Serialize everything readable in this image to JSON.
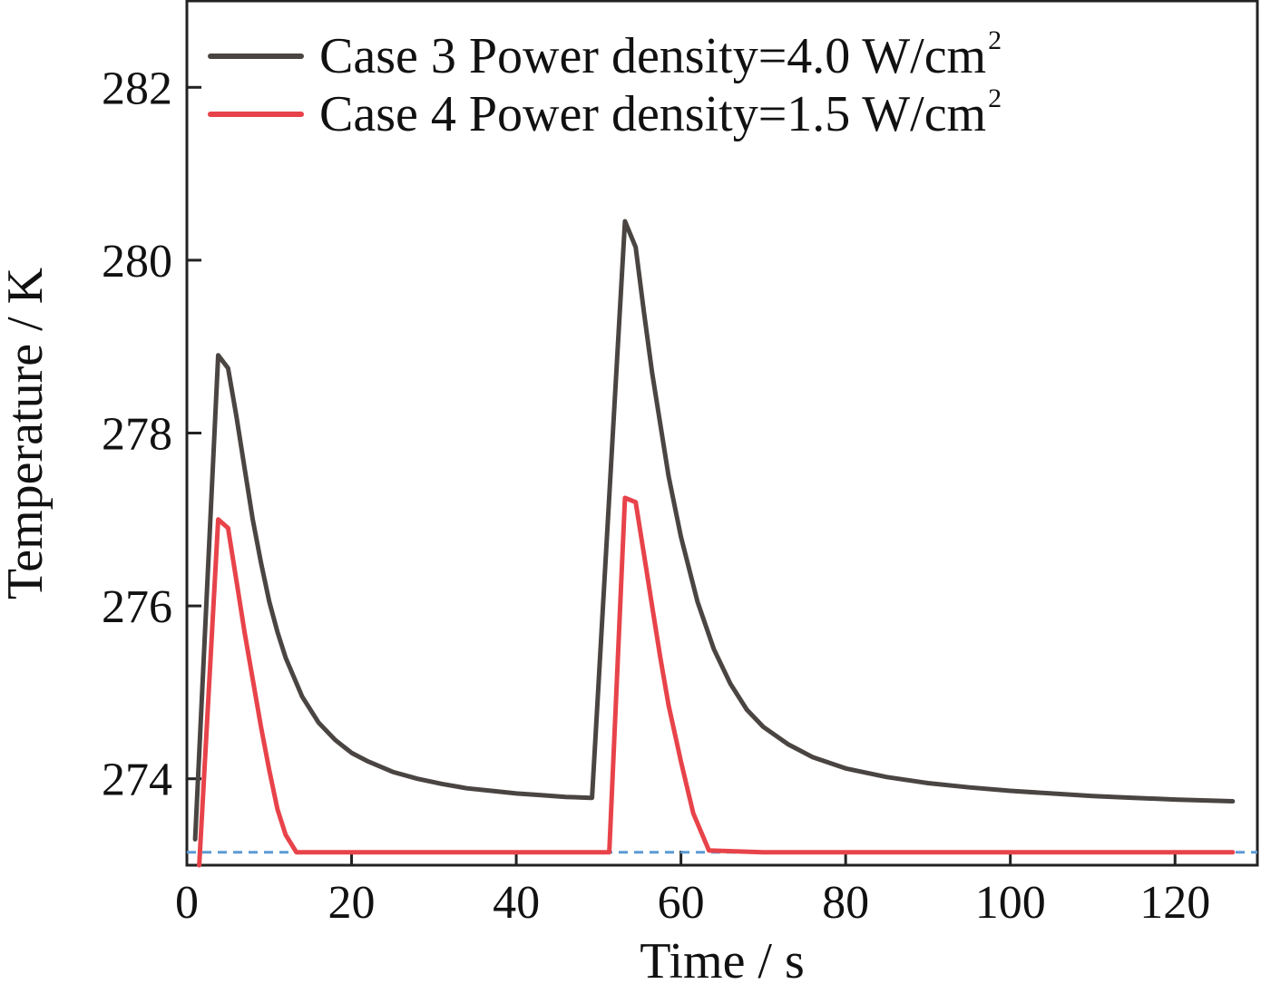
{
  "chart_data": {
    "type": "line",
    "xlabel": "Time / s",
    "ylabel": "Temperature / K",
    "xlim": [
      0,
      130
    ],
    "ylim": [
      273.0,
      283.0
    ],
    "xticks": [
      0,
      20,
      40,
      60,
      80,
      100,
      120
    ],
    "yticks": [
      274,
      276,
      278,
      280,
      282
    ],
    "legend_position": "top-left",
    "series": [
      {
        "name": "Case 3 Power density=4.0 W/cm",
        "name_sup": "2",
        "color": "#4a4542",
        "x": [
          1,
          3.8,
          5,
          6,
          7,
          8,
          9,
          10,
          11,
          12,
          14,
          16,
          18,
          20,
          22,
          25,
          28,
          31,
          34,
          37,
          40,
          43,
          46,
          49,
          49.2,
          53.2,
          54.5,
          55.5,
          56.5,
          57.5,
          58.5,
          60,
          62,
          64,
          66,
          68,
          70,
          73,
          76,
          80,
          85,
          90,
          95,
          100,
          105,
          110,
          115,
          120,
          127
        ],
        "y": [
          273.3,
          278.9,
          278.75,
          278.2,
          277.6,
          277.0,
          276.5,
          276.05,
          275.7,
          275.4,
          274.95,
          274.65,
          274.45,
          274.3,
          274.2,
          274.08,
          274.0,
          273.94,
          273.89,
          273.86,
          273.83,
          273.81,
          273.79,
          273.78,
          273.78,
          280.45,
          280.15,
          279.4,
          278.7,
          278.1,
          277.5,
          276.8,
          276.05,
          275.5,
          275.1,
          274.8,
          274.6,
          274.4,
          274.25,
          274.12,
          274.02,
          273.95,
          273.9,
          273.86,
          273.83,
          273.8,
          273.78,
          273.76,
          273.74
        ]
      },
      {
        "name": "Case 4 Power density=1.5 W/cm",
        "name_sup": "2",
        "color": "#e8434a",
        "x": [
          1.5,
          3.8,
          5,
          6,
          7,
          8,
          9,
          10,
          11,
          12,
          13.3,
          20,
          30,
          40,
          51.3,
          53.2,
          54.5,
          55.5,
          56.5,
          57.5,
          58.5,
          60,
          61.5,
          63.4,
          70,
          80,
          90,
          100,
          110,
          120,
          127
        ],
        "y": [
          273.0,
          277.0,
          276.9,
          276.3,
          275.7,
          275.15,
          274.6,
          274.1,
          273.65,
          273.35,
          273.15,
          273.15,
          273.15,
          273.15,
          273.15,
          277.25,
          277.2,
          276.6,
          276.0,
          275.4,
          274.85,
          274.2,
          273.6,
          273.17,
          273.15,
          273.15,
          273.15,
          273.15,
          273.15,
          273.15,
          273.15
        ]
      }
    ],
    "reference_line": {
      "y": 273.15,
      "color": "#5b9bd5",
      "style": "dashed"
    }
  }
}
